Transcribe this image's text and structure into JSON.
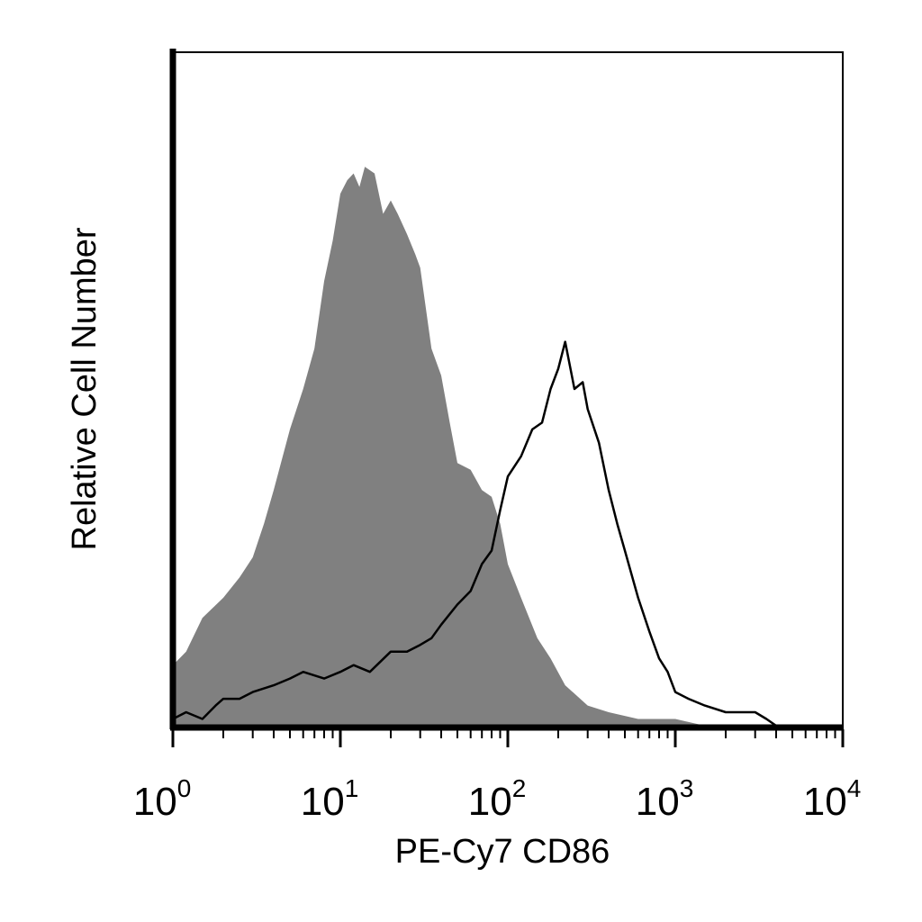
{
  "chart_data": {
    "type": "area",
    "xlabel": "PE-Cy7 CD86",
    "ylabel": "Relative Cell Number",
    "xscale": "log",
    "xlim": [
      1,
      10000
    ],
    "ylim": [
      0,
      100
    ],
    "grid": false,
    "legend": "none",
    "x_ticks": [
      {
        "base": "10",
        "exp": "0"
      },
      {
        "base": "10",
        "exp": "1"
      },
      {
        "base": "10",
        "exp": "2"
      },
      {
        "base": "10",
        "exp": "3"
      },
      {
        "base": "10",
        "exp": "4"
      }
    ],
    "series": [
      {
        "style": "filled",
        "color": "#808080",
        "x": [
          1.0,
          1.2,
          1.5,
          2.0,
          2.5,
          3.0,
          3.5,
          4.0,
          5.0,
          6.0,
          7.0,
          8.0,
          9.0,
          10.0,
          11.0,
          12.0,
          13.0,
          14.0,
          16.0,
          18.0,
          20.0,
          22.0,
          25.0,
          28.0,
          30.0,
          35.0,
          40.0,
          45.0,
          50.0,
          60.0,
          70.0,
          80.0,
          90.0,
          100.0,
          120.0,
          150.0,
          180.0,
          220.0,
          300.0,
          400.0,
          600.0,
          1000.0,
          1500.0
        ],
        "y": [
          9,
          11,
          16,
          19,
          22,
          25,
          30,
          35,
          44,
          50,
          56,
          66,
          72,
          79,
          81,
          82,
          80,
          83,
          82,
          76,
          78,
          76,
          73,
          70,
          68,
          56,
          52,
          45,
          39,
          38,
          35,
          34,
          30,
          24,
          19,
          13,
          10,
          6,
          3,
          2,
          1,
          1,
          0
        ]
      },
      {
        "style": "outline",
        "color": "#000000",
        "x": [
          1.0,
          1.2,
          1.5,
          1.8,
          2.0,
          2.5,
          3.0,
          4.0,
          5.0,
          6.0,
          8.0,
          10.0,
          12.0,
          15.0,
          20.0,
          25.0,
          30.0,
          35.0,
          40.0,
          50.0,
          60.0,
          70.0,
          80.0,
          90.0,
          100.0,
          120.0,
          140.0,
          160.0,
          180.0,
          200.0,
          220.0,
          250.0,
          280.0,
          300.0,
          350.0,
          400.0,
          450.0,
          500.0,
          600.0,
          700.0,
          800.0,
          900.0,
          1000.0,
          1200.0,
          1500.0,
          2000.0,
          2500.0,
          3000.0,
          3500.0,
          4000.0
        ],
        "y": [
          1,
          2,
          1,
          3,
          4,
          4,
          5,
          6,
          7,
          8,
          7,
          8,
          9,
          8,
          11,
          11,
          12,
          13,
          15,
          18,
          20,
          24,
          26,
          32,
          37,
          40,
          44,
          45,
          50,
          53,
          57,
          50,
          51,
          47,
          42,
          35,
          30,
          26,
          19,
          14,
          10,
          8,
          5,
          4,
          3,
          2,
          2,
          2,
          1,
          0
        ]
      }
    ]
  }
}
